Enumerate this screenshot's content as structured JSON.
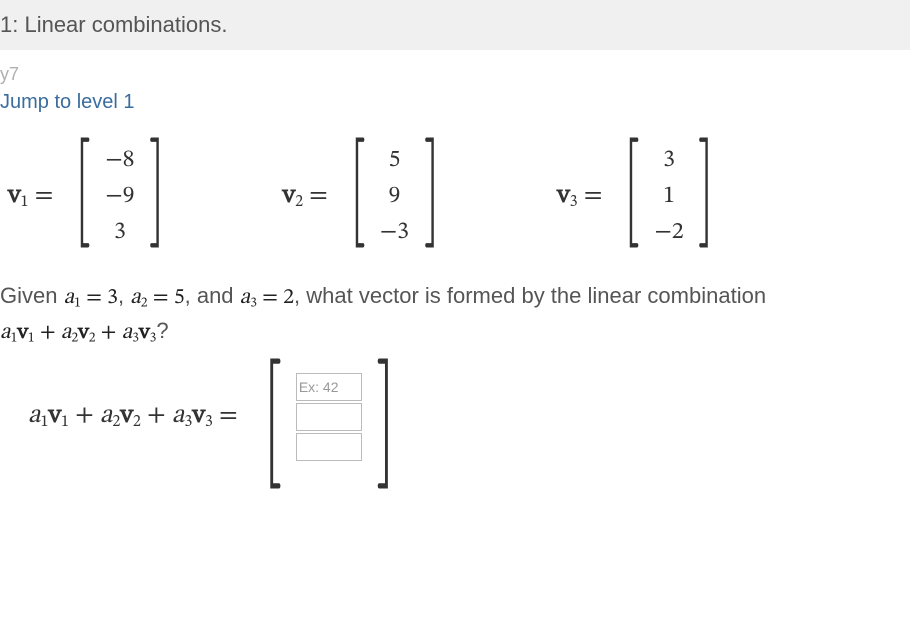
{
  "header": {
    "title": "1: Linear combinations."
  },
  "meta_label": "y7",
  "jump_label": "Jump to level 1",
  "vectors": {
    "v1": {
      "label_base": "v",
      "label_sub": "1",
      "entries": [
        "−8",
        "−9",
        "3"
      ]
    },
    "v2": {
      "label_base": "v",
      "label_sub": "2",
      "entries": [
        "5",
        "9",
        "−3"
      ]
    },
    "v3": {
      "label_base": "v",
      "label_sub": "3",
      "entries": [
        "3",
        "1",
        "−2"
      ]
    }
  },
  "question": {
    "prefix": "Given ",
    "a1": "a",
    "a1sub": "1",
    "a1val": " = 3",
    "sep1": ", ",
    "a2": "a",
    "a2sub": "2",
    "a2val": " = 5",
    "sep2": ", and ",
    "a3": "a",
    "a3sub": "3",
    "a3val": " = 2",
    "suffix": ", what vector is formed by the linear combination ",
    "expr_a1": "a",
    "expr_v1": "v",
    "expr_a2": "a",
    "expr_v2": "v",
    "expr_a3": "a",
    "expr_v3": "v",
    "qmark": "?"
  },
  "answer": {
    "lhs_a1": "a",
    "lhs_v1": "v",
    "lhs_a2": "a",
    "lhs_v2": "v",
    "lhs_a3": "a",
    "lhs_v3": "v",
    "placeholder": "Ex: 42"
  },
  "symbols": {
    "eq": "=",
    "plus": " + ",
    "lbr": "[",
    "rbr": "]",
    "s1": "1",
    "s2": "2",
    "s3": "3"
  }
}
